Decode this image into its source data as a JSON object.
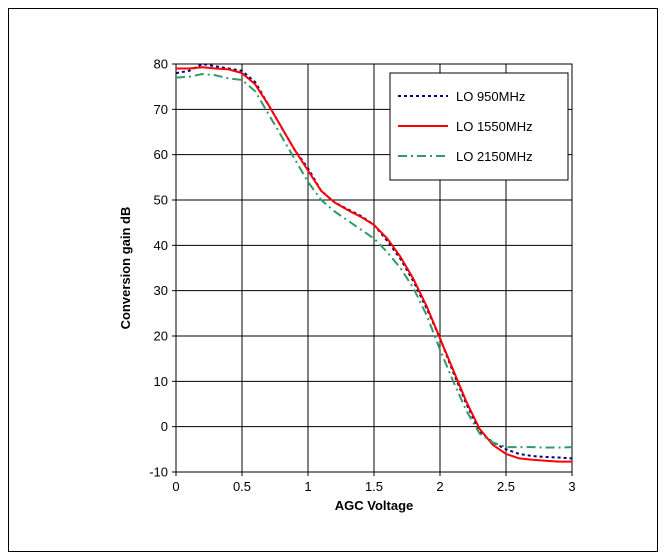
{
  "chart_data": {
    "type": "line",
    "title": "",
    "xlabel": "AGC Voltage",
    "ylabel": "Conversion gain dB",
    "xlim": [
      0,
      3
    ],
    "ylim": [
      -10,
      80
    ],
    "x_ticks": [
      "0",
      "0.5",
      "1",
      "1.5",
      "2",
      "2.5",
      "3"
    ],
    "y_ticks": [
      "-10",
      "0",
      "10",
      "20",
      "30",
      "40",
      "50",
      "60",
      "70",
      "80"
    ],
    "grid": true,
    "legend_position": "top-right",
    "series": [
      {
        "name": "LO 950MHz",
        "color": "#000080",
        "style": "dotted",
        "points": [
          [
            0,
            78
          ],
          [
            0.1,
            78.5
          ],
          [
            0.2,
            80
          ],
          [
            0.3,
            79.5
          ],
          [
            0.4,
            79
          ],
          [
            0.5,
            78.5
          ],
          [
            0.6,
            76
          ],
          [
            0.7,
            71
          ],
          [
            0.8,
            66
          ],
          [
            0.9,
            61
          ],
          [
            1.0,
            57
          ],
          [
            1.1,
            52
          ],
          [
            1.2,
            49.5
          ],
          [
            1.3,
            48
          ],
          [
            1.4,
            46.5
          ],
          [
            1.5,
            44.5
          ],
          [
            1.6,
            41
          ],
          [
            1.7,
            37
          ],
          [
            1.8,
            32
          ],
          [
            1.9,
            26
          ],
          [
            2.0,
            19.5
          ],
          [
            2.1,
            12
          ],
          [
            2.2,
            5
          ],
          [
            2.3,
            -1
          ],
          [
            2.4,
            -3.5
          ],
          [
            2.5,
            -5
          ],
          [
            2.6,
            -6
          ],
          [
            2.7,
            -6.5
          ],
          [
            2.8,
            -6.7
          ],
          [
            2.9,
            -6.8
          ],
          [
            3.0,
            -7
          ]
        ]
      },
      {
        "name": "LO 1550MHz",
        "color": "#ff0000",
        "style": "solid",
        "points": [
          [
            0,
            79
          ],
          [
            0.1,
            79
          ],
          [
            0.2,
            79.3
          ],
          [
            0.3,
            79
          ],
          [
            0.4,
            78.8
          ],
          [
            0.5,
            78
          ],
          [
            0.6,
            75.5
          ],
          [
            0.7,
            71
          ],
          [
            0.8,
            66
          ],
          [
            0.9,
            61
          ],
          [
            1.0,
            56.5
          ],
          [
            1.1,
            52
          ],
          [
            1.2,
            49.5
          ],
          [
            1.3,
            47.8
          ],
          [
            1.4,
            46.3
          ],
          [
            1.5,
            44.5
          ],
          [
            1.6,
            41.5
          ],
          [
            1.7,
            37.5
          ],
          [
            1.8,
            32.5
          ],
          [
            1.9,
            26.5
          ],
          [
            2.0,
            19.5
          ],
          [
            2.1,
            12.5
          ],
          [
            2.2,
            5.5
          ],
          [
            2.3,
            -0.5
          ],
          [
            2.4,
            -4
          ],
          [
            2.5,
            -6
          ],
          [
            2.6,
            -7
          ],
          [
            2.7,
            -7.3
          ],
          [
            2.8,
            -7.5
          ],
          [
            2.9,
            -7.7
          ],
          [
            3.0,
            -7.7
          ]
        ]
      },
      {
        "name": "LO 2150MHz",
        "color": "#339966",
        "style": "dash-dot",
        "points": [
          [
            0,
            77
          ],
          [
            0.1,
            77.2
          ],
          [
            0.2,
            77.8
          ],
          [
            0.3,
            77.5
          ],
          [
            0.4,
            76.8
          ],
          [
            0.5,
            76.5
          ],
          [
            0.6,
            74
          ],
          [
            0.7,
            69
          ],
          [
            0.8,
            64
          ],
          [
            0.9,
            59
          ],
          [
            1.0,
            54
          ],
          [
            1.1,
            50
          ],
          [
            1.2,
            47.5
          ],
          [
            1.3,
            45.5
          ],
          [
            1.4,
            43.5
          ],
          [
            1.5,
            41.5
          ],
          [
            1.6,
            38.5
          ],
          [
            1.7,
            35
          ],
          [
            1.8,
            30.5
          ],
          [
            1.9,
            24.5
          ],
          [
            2.0,
            17
          ],
          [
            2.1,
            10
          ],
          [
            2.2,
            3.5
          ],
          [
            2.3,
            -1.5
          ],
          [
            2.4,
            -3.5
          ],
          [
            2.5,
            -4.5
          ],
          [
            2.6,
            -4.5
          ],
          [
            2.7,
            -4.5
          ],
          [
            2.8,
            -4.6
          ],
          [
            2.9,
            -4.6
          ],
          [
            3.0,
            -4.5
          ]
        ]
      }
    ]
  }
}
